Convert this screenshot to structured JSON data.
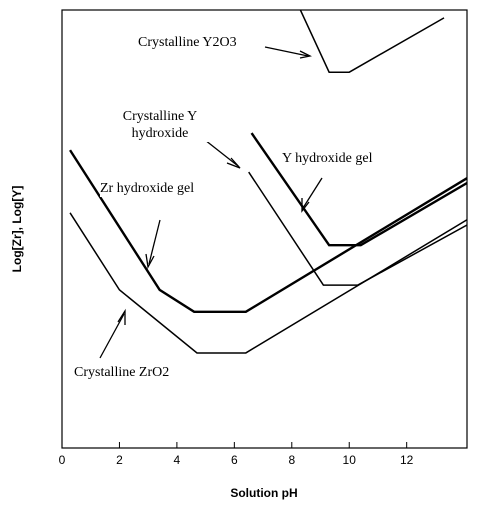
{
  "chart_data": {
    "type": "line",
    "xlabel": "Solution pH",
    "ylabel": "Log[Zr], Log[Y]",
    "xlim": [
      0,
      14.1
    ],
    "ylim": [
      0,
      100
    ],
    "xticks": [
      0,
      2,
      4,
      6,
      8,
      10,
      12
    ],
    "series": [
      {
        "name": "Zr hydroxide gel",
        "color": "#000000",
        "x": [
          0.28,
          3.4,
          4.6,
          6.4,
          14.1
        ],
        "values": [
          68.0,
          36.1,
          31.1,
          31.1,
          61.6
        ]
      },
      {
        "name": "Crystalline ZrO2",
        "color": "#000000",
        "x": [
          0.28,
          2.0,
          4.7,
          6.4,
          14.1
        ],
        "values": [
          53.7,
          36.1,
          21.7,
          21.7,
          52.1
        ]
      },
      {
        "name": "Crystalline Y hydroxide",
        "color": "#000000",
        "x": [
          6.5,
          9.1,
          10.3,
          14.1
        ],
        "values": [
          63.0,
          37.2,
          37.2,
          50.9
        ]
      },
      {
        "name": "Y hydroxide gel",
        "color": "#000000",
        "x": [
          6.6,
          9.3,
          10.4,
          14.1
        ],
        "values": [
          71.9,
          46.3,
          46.3,
          60.5
        ]
      },
      {
        "name": "Crystalline Y2O3",
        "color": "#000000",
        "x": [
          8.3,
          9.3,
          10.0,
          13.3
        ],
        "values": [
          100,
          85.8,
          85.8,
          98.2
        ]
      }
    ]
  }
}
